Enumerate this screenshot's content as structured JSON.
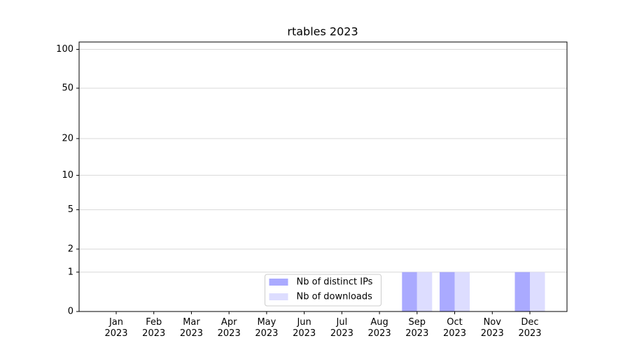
{
  "chart_data": {
    "type": "bar",
    "title": "rtables 2023",
    "categories": [
      "Jan\n2023",
      "Feb\n2023",
      "Mar\n2023",
      "Apr\n2023",
      "May\n2023",
      "Jun\n2023",
      "Jul\n2023",
      "Aug\n2023",
      "Sep\n2023",
      "Oct\n2023",
      "Nov\n2023",
      "Dec\n2023"
    ],
    "series": [
      {
        "name": "Nb of distinct IPs",
        "color": "#aaaaff",
        "values": [
          0,
          0,
          0,
          0,
          0,
          0,
          0,
          0,
          1,
          1,
          0,
          1
        ]
      },
      {
        "name": "Nb of downloads",
        "color": "#ddddff",
        "values": [
          0,
          0,
          0,
          0,
          0,
          0,
          0,
          0,
          1,
          1,
          0,
          1
        ]
      }
    ],
    "yscale": "log1p",
    "ylim": [
      0,
      114
    ],
    "yticks": [
      0,
      1,
      2,
      5,
      10,
      20,
      50,
      100
    ],
    "grid": true,
    "legend": "lower center"
  }
}
